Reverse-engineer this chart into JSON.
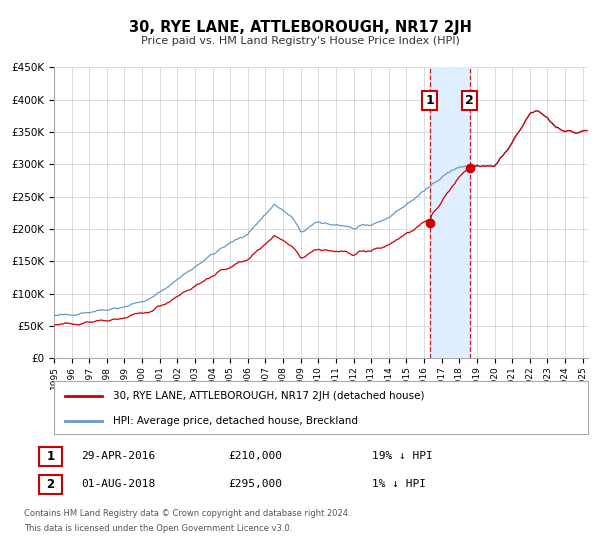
{
  "title": "30, RYE LANE, ATTLEBOROUGH, NR17 2JH",
  "subtitle": "Price paid vs. HM Land Registry's House Price Index (HPI)",
  "legend_label_red": "30, RYE LANE, ATTLEBOROUGH, NR17 2JH (detached house)",
  "legend_label_blue": "HPI: Average price, detached house, Breckland",
  "annotation1_date": "29-APR-2016",
  "annotation1_price": "£210,000",
  "annotation1_hpi": "19% ↓ HPI",
  "annotation1_year": 2016.33,
  "annotation1_value": 210000,
  "annotation2_date": "01-AUG-2018",
  "annotation2_price": "£295,000",
  "annotation2_hpi": "1% ↓ HPI",
  "annotation2_year": 2018.58,
  "annotation2_value": 295000,
  "footer1": "Contains HM Land Registry data © Crown copyright and database right 2024.",
  "footer2": "This data is licensed under the Open Government Licence v3.0.",
  "ylim": [
    0,
    450000
  ],
  "xlim_start": 1995.0,
  "xlim_end": 2025.3,
  "background_color": "#ffffff",
  "grid_color": "#cccccc",
  "red_color": "#cc0000",
  "blue_color": "#6699cc",
  "highlight_color": "#ddeeff"
}
